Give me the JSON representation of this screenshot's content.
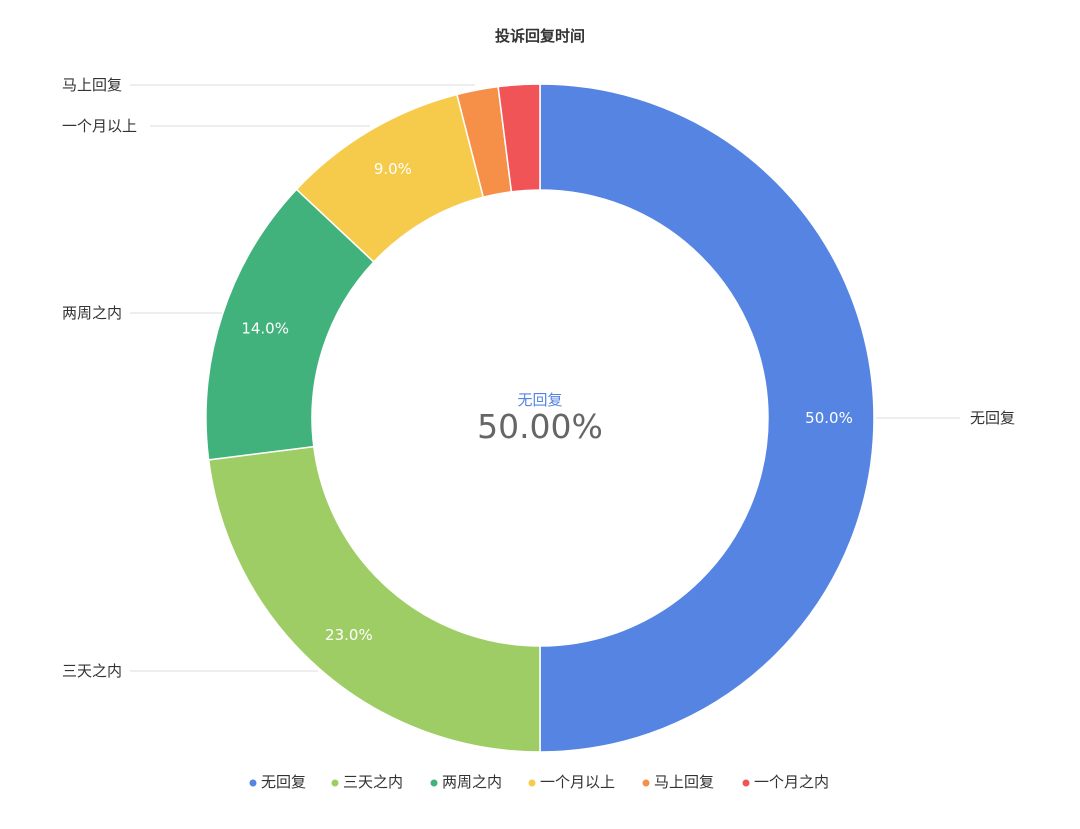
{
  "chart_data": {
    "type": "pie",
    "variant": "donut",
    "title": "投诉回复时间",
    "categories": [
      "无回复",
      "三天之内",
      "两周之内",
      "一个月以上",
      "马上回复",
      "一个月之内"
    ],
    "values": [
      50.0,
      23.0,
      14.0,
      9.0,
      2.0,
      2.0
    ],
    "value_labels": [
      "50.0%",
      "23.0%",
      "14.0%",
      "9.0%",
      "",
      ""
    ],
    "colors": [
      "#5584E3",
      "#9FCD65",
      "#41B27C",
      "#F6CB4B",
      "#F69049",
      "#F15456"
    ],
    "center": {
      "name": "无回复",
      "value": "50.00%"
    },
    "legend": {
      "placement": "bottom-center",
      "items": [
        "无回复",
        "三天之内",
        "两周之内",
        "一个月以上",
        "马上回复",
        "一个月之内"
      ]
    },
    "outer_labels": [
      "无回复",
      "三天之内",
      "两周之内",
      "一个月以上",
      "马上回复"
    ]
  }
}
